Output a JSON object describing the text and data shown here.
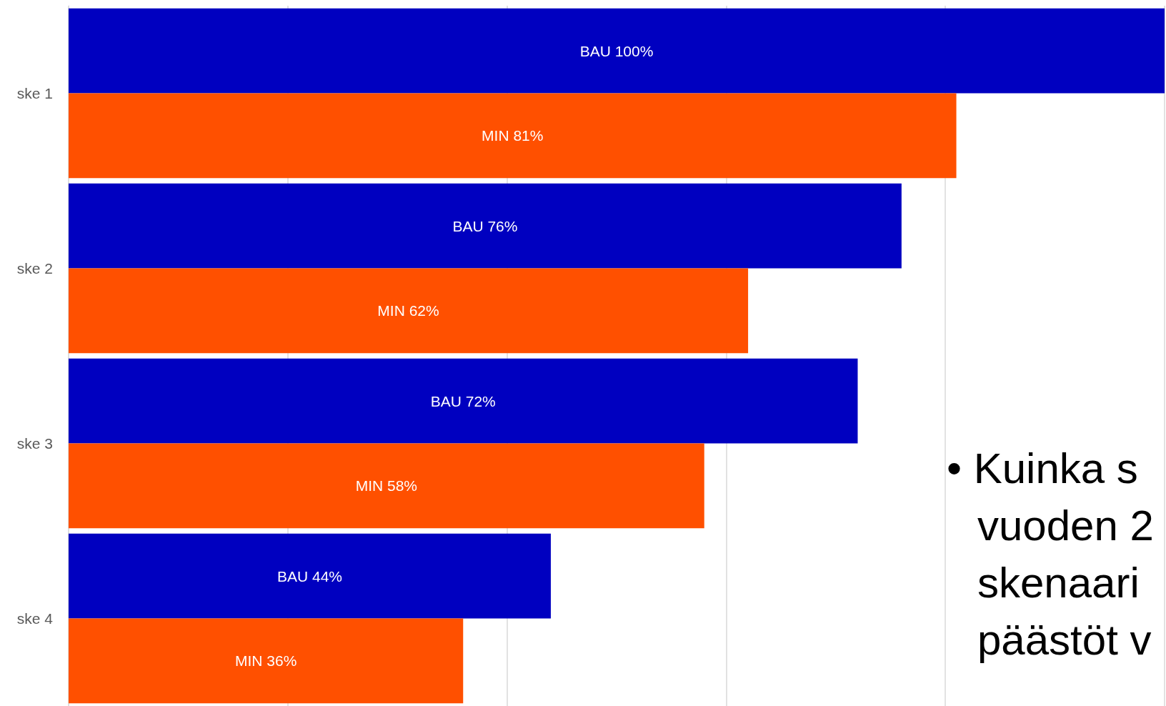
{
  "chart_data": {
    "type": "bar",
    "orientation": "horizontal",
    "categories": [
      "ske 1",
      "ske 2",
      "ske 3",
      "ske 4"
    ],
    "series": [
      {
        "color": "#0000c0",
        "values": [
          100,
          76,
          72,
          44
        ],
        "value_labels": [
          "BAU 100%",
          "BAU 76%",
          "BAU 72%",
          "BAU 44%"
        ]
      },
      {
        "color": "#ff5000",
        "values": [
          81,
          62,
          58,
          36
        ],
        "value_labels": [
          "MIN 81%",
          "MIN 62%",
          "MIN 58%",
          "MIN 36%"
        ]
      }
    ],
    "xlim": [
      0,
      100
    ],
    "xticks": [
      {
        "value": 0,
        "label": null
      },
      {
        "value": 20,
        "label": null
      },
      {
        "value": 40,
        "label": null
      },
      {
        "value": 60,
        "label": null
      },
      {
        "value": 80,
        "label": null
      },
      {
        "value": 100,
        "label": null
      }
    ],
    "grid": "x",
    "tick_labels": "y",
    "annotations": [
      "• Kuinka s\nvuoden 2\nskenaari\npäästöt v"
    ]
  }
}
